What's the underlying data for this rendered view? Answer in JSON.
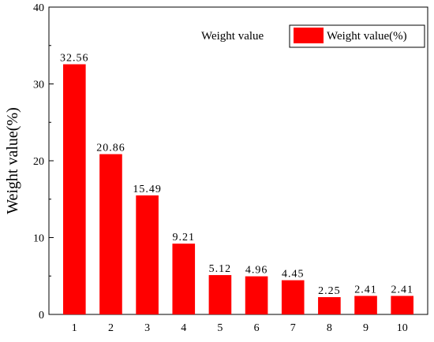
{
  "chart_data": {
    "type": "bar",
    "title": "Weight value",
    "xlabel": "",
    "ylabel": "Weight value(%)",
    "categories": [
      "1",
      "2",
      "3",
      "4",
      "5",
      "6",
      "7",
      "8",
      "9",
      "10"
    ],
    "series": [
      {
        "name": "Weight value(%)",
        "values": [
          32.56,
          20.86,
          15.49,
          9.21,
          5.12,
          4.96,
          4.45,
          2.25,
          2.41,
          2.41
        ],
        "labels": [
          "32.56",
          "20.86",
          "15.49",
          "9.21",
          "5.12",
          "4.96",
          "4.45",
          "2.25",
          "2.41",
          "2.41"
        ],
        "color": "#ff0000"
      }
    ],
    "ylim": [
      0,
      40
    ],
    "yticks": [
      "0",
      "10",
      "20",
      "30",
      "40"
    ],
    "grid": false,
    "legend_position": "top-right"
  }
}
